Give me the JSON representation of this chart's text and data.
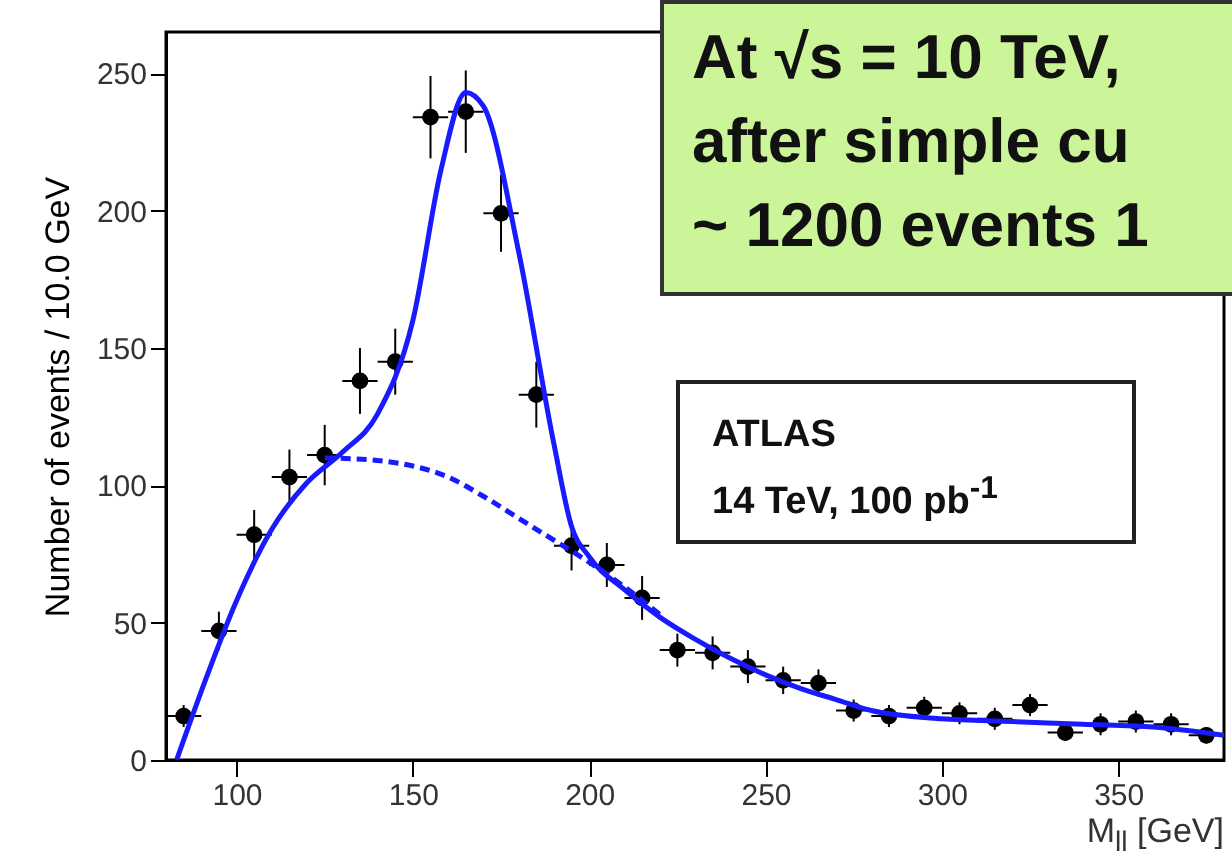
{
  "chart_data": {
    "type": "scatter",
    "xlabel": "M$_{ll}$ [GeV]",
    "ylabel": "Number of events / 10.0 GeV",
    "annotations": [
      "At √s = 10 TeV,",
      "after simple cu",
      "~ 1200 events 1",
      "ATLAS",
      "14 TeV, 100 pb$^{-1}$"
    ],
    "xlim": [
      80,
      380
    ],
    "ylim": [
      0,
      265
    ],
    "xticks": [
      100,
      150,
      200,
      250,
      300,
      350
    ],
    "yticks": [
      0,
      50,
      100,
      150,
      200,
      250
    ],
    "grid": false,
    "series": [
      {
        "color": "#000000",
        "marker": "circle",
        "x": [
          85,
          95,
          105,
          115,
          125,
          135,
          145,
          155,
          165,
          175,
          185,
          195,
          205,
          215,
          225,
          235,
          245,
          255,
          265,
          275,
          285,
          295,
          305,
          315,
          325,
          335,
          345,
          355,
          365,
          375
        ],
        "values": [
          16,
          47,
          82,
          103,
          111,
          138,
          145,
          234,
          236,
          199,
          133,
          78,
          71,
          59,
          40,
          39,
          34,
          29,
          28,
          18,
          16,
          19,
          17,
          15,
          20,
          10,
          13,
          14,
          13,
          9
        ],
        "errors": [
          4,
          7,
          9,
          10,
          11,
          12,
          12,
          15,
          15,
          14,
          12,
          9,
          8,
          8,
          6,
          6,
          6,
          5,
          5,
          4,
          4,
          4,
          4,
          4,
          4,
          3,
          4,
          4,
          4,
          3
        ],
        "xerrors": [
          5,
          5,
          5,
          5,
          5,
          5,
          5,
          5,
          5,
          5,
          5,
          5,
          5,
          5,
          5,
          5,
          5,
          5,
          5,
          5,
          5,
          5,
          5,
          5,
          5,
          5,
          5,
          5,
          5,
          5
        ]
      },
      {
        "type": "line",
        "color": "#1a1aff",
        "line_style": "solid",
        "x": [
          83,
          90,
          100,
          110,
          120,
          130,
          140,
          150,
          158,
          165,
          170,
          180,
          190,
          195,
          200,
          210,
          220,
          230,
          240,
          250,
          260,
          270,
          280,
          300,
          320,
          340,
          360,
          380
        ],
        "values": [
          0,
          25,
          58,
          84,
          101,
          112,
          126,
          160,
          215,
          243,
          238,
          185,
          115,
          85,
          74,
          62,
          52,
          44,
          37,
          31,
          26,
          22,
          18,
          15,
          14,
          13,
          12,
          9
        ]
      },
      {
        "type": "line",
        "color": "#1a1aff",
        "line_style": "dashed",
        "x": [
          125,
          140,
          150,
          160,
          170,
          180,
          190,
          200,
          210,
          220
        ],
        "values": [
          110,
          109,
          107,
          103,
          96,
          88,
          80,
          72,
          63,
          53
        ]
      }
    ]
  }
}
